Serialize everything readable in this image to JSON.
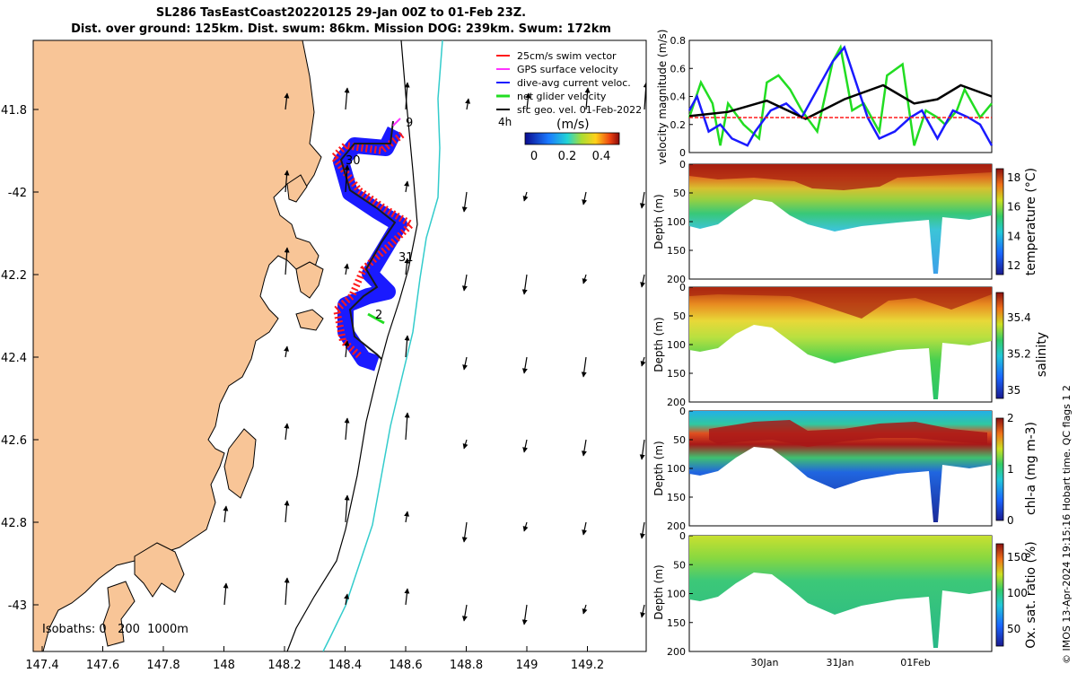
{
  "title": {
    "line1": "SL286 TasEastCoast20220125 29-Jan 00Z to 01-Feb 23Z.",
    "line2": "Dist. over ground: 125km. Dist. swum: 86km. Mission DOG: 239km. Swum: 172km"
  },
  "colors": {
    "land": "#f8c597",
    "swim": "#ff1a1a",
    "gps": "#ff33ff",
    "dive": "#1a1aff",
    "net": "#22dd22",
    "geo": "#000000",
    "isobath": "#33cccc"
  },
  "map": {
    "lon_ticks": [
      "147.4",
      "147.6",
      "147.8",
      "148",
      "148.2",
      "148.4",
      "148.6",
      "148.8",
      "149",
      "149.2"
    ],
    "lat_ticks": [
      "41.8",
      "-42",
      "42.2",
      "42.4",
      "42.6",
      "42.8",
      "-43"
    ],
    "day_labels": [
      "9",
      "30",
      "31",
      "2"
    ],
    "isobaths_label": "Isobaths: 0   200  1000m",
    "legend": [
      {
        "label": "25cm/s swim vector",
        "color": "#ff1a1a"
      },
      {
        "label": "GPS surface velocity",
        "color": "#ff33ff"
      },
      {
        "label": "dive-avg current veloc.",
        "color": "#1a1aff"
      },
      {
        "label": "net glider velocity",
        "color": "#22dd22"
      },
      {
        "label": "sfc geo. vel. 01-Feb-2022",
        "color": "#000000"
      }
    ],
    "legend_interval": "4h",
    "colorbar": {
      "label": "(m/s)",
      "ticks": [
        "0",
        "0.2",
        "0.4"
      ],
      "range": [
        0,
        0.5
      ]
    }
  },
  "chart_data": [
    {
      "type": "line",
      "title": "",
      "ylabel": "velocity magnitude (m/s)",
      "ylim": [
        0,
        0.8
      ],
      "yticks": [
        "0",
        "0.2",
        "0.4",
        "0.6",
        "0.8"
      ],
      "x_days": [
        0,
        3.9
      ],
      "series": [
        {
          "name": "net glider velocity",
          "color": "#22dd22",
          "x": [
            0,
            0.15,
            0.3,
            0.4,
            0.5,
            0.7,
            0.9,
            1.0,
            1.15,
            1.3,
            1.45,
            1.65,
            1.85,
            1.95,
            2.1,
            2.25,
            2.45,
            2.55,
            2.75,
            2.9,
            3.05,
            3.2,
            3.3,
            3.45,
            3.55,
            3.75,
            3.9
          ],
          "values": [
            0.25,
            0.5,
            0.35,
            0.05,
            0.35,
            0.2,
            0.1,
            0.5,
            0.55,
            0.45,
            0.3,
            0.15,
            0.65,
            0.75,
            0.3,
            0.35,
            0.15,
            0.55,
            0.63,
            0.05,
            0.3,
            0.25,
            0.2,
            0.3,
            0.45,
            0.25,
            0.35
          ]
        },
        {
          "name": "dive-avg current veloc.",
          "color": "#1a1aff",
          "x": [
            0,
            0.1,
            0.25,
            0.4,
            0.55,
            0.75,
            0.85,
            1.05,
            1.25,
            1.45,
            1.65,
            1.85,
            2.0,
            2.15,
            2.3,
            2.45,
            2.65,
            2.85,
            3.0,
            3.2,
            3.4,
            3.6,
            3.75,
            3.9
          ],
          "values": [
            0.3,
            0.4,
            0.15,
            0.2,
            0.1,
            0.05,
            0.15,
            0.3,
            0.35,
            0.25,
            0.45,
            0.65,
            0.75,
            0.5,
            0.25,
            0.1,
            0.15,
            0.25,
            0.3,
            0.1,
            0.3,
            0.25,
            0.2,
            0.05
          ]
        },
        {
          "name": "sfc geo. vel.",
          "color": "#000000",
          "x": [
            0,
            0.5,
            1.0,
            1.5,
            2.0,
            2.5,
            2.9,
            3.2,
            3.5,
            3.9
          ],
          "values": [
            0.26,
            0.29,
            0.37,
            0.24,
            0.38,
            0.48,
            0.35,
            0.38,
            0.48,
            0.4
          ]
        },
        {
          "name": "25cm/s swim vector",
          "color": "#ff1a1a",
          "x": [
            0,
            3.9
          ],
          "values": [
            0.25,
            0.25
          ]
        }
      ]
    },
    {
      "type": "heatmap",
      "variable": "temperature",
      "cbar_label": "temperature (°C)",
      "cbar_ticks": [
        "12",
        "14",
        "16",
        "18"
      ],
      "ylabel": "Depth (m)",
      "ylim": [
        0,
        200
      ],
      "yticks": [
        "0",
        "50",
        "100",
        "150",
        "200"
      ]
    },
    {
      "type": "heatmap",
      "variable": "salinity",
      "cbar_label": "salinity",
      "cbar_ticks": [
        "35",
        "35.2",
        "35.4"
      ],
      "ylabel": "Depth (m)",
      "ylim": [
        0,
        200
      ],
      "yticks": [
        "0",
        "50",
        "100",
        "150",
        "200"
      ]
    },
    {
      "type": "heatmap",
      "variable": "chl-a",
      "cbar_label": "chl-a (mg m-3)",
      "cbar_ticks": [
        "0",
        "1",
        "2"
      ],
      "ylabel": "Depth (m)",
      "ylim": [
        0,
        200
      ],
      "yticks": [
        "0",
        "50",
        "100",
        "150",
        "200"
      ]
    },
    {
      "type": "heatmap",
      "variable": "oxygen",
      "cbar_label": "Ox. sat. ratio (%)",
      "cbar_ticks": [
        "50",
        "100",
        "150"
      ],
      "ylabel": "Depth (m)",
      "ylim": [
        0,
        200
      ],
      "yticks": [
        "0",
        "50",
        "100",
        "150",
        "200"
      ],
      "xticks": [
        "30Jan",
        "31Jan",
        "01Feb"
      ]
    }
  ],
  "footer": {
    "stamp": "© IMOS 13-Apr-2024 19:15:16 Hobart time. QC flags 1  2"
  }
}
